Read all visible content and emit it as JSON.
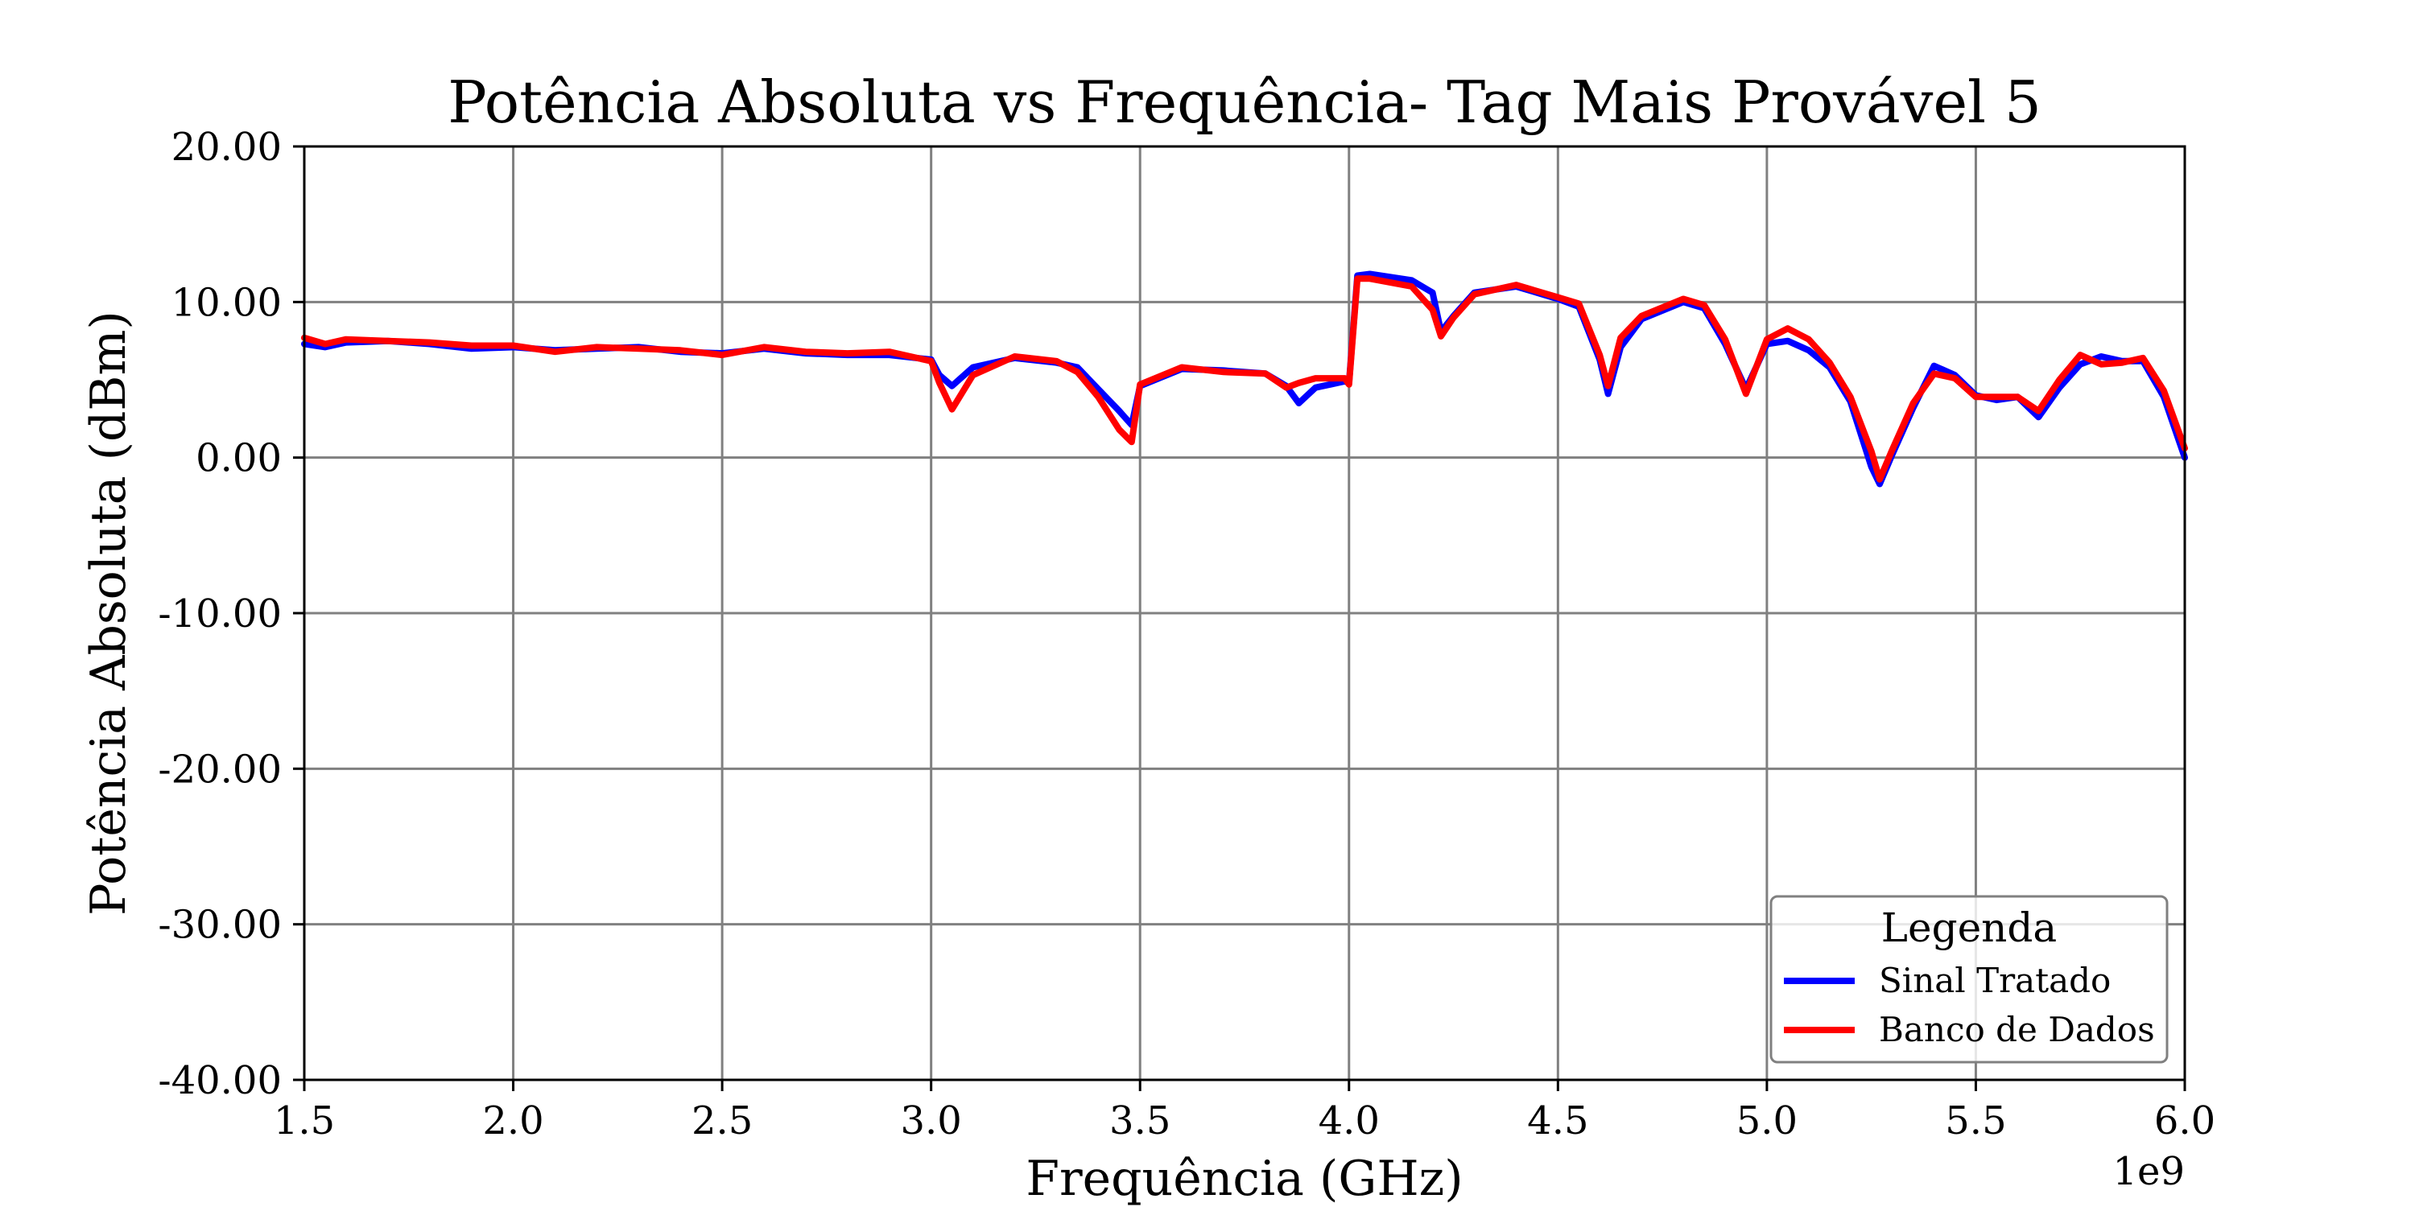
{
  "chart_data": {
    "type": "line",
    "title": "Potência Absoluta vs Frequência- Tag Mais Provável 5",
    "xlabel": "Frequência (GHz)",
    "ylabel": "Potência Absoluta (dBm)",
    "x_offset_label": "1e9",
    "xlim": [
      1.5,
      6.0
    ],
    "ylim": [
      -40,
      20
    ],
    "x_ticks": [
      1.5,
      2.0,
      2.5,
      3.0,
      3.5,
      4.0,
      4.5,
      5.0,
      5.5,
      6.0
    ],
    "x_tick_labels": [
      "1.5",
      "2.0",
      "2.5",
      "3.0",
      "3.5",
      "4.0",
      "4.5",
      "5.0",
      "5.5",
      "6.0"
    ],
    "y_ticks": [
      -40,
      -30,
      -20,
      -10,
      0,
      10,
      20
    ],
    "y_tick_labels": [
      "-40.00",
      "-30.00",
      "-20.00",
      "-10.00",
      "0.00",
      "10.00",
      "20.00"
    ],
    "grid": true,
    "legend": {
      "title": "Legenda",
      "placement": "bottom-right"
    },
    "series": [
      {
        "name": "Sinal Tratado",
        "color": "#0000ff",
        "x": [
          1.5,
          1.55,
          1.6,
          1.7,
          1.8,
          1.9,
          2.0,
          2.1,
          2.2,
          2.3,
          2.4,
          2.5,
          2.6,
          2.7,
          2.8,
          2.9,
          3.0,
          3.02,
          3.05,
          3.1,
          3.2,
          3.3,
          3.35,
          3.4,
          3.45,
          3.48,
          3.5,
          3.6,
          3.7,
          3.8,
          3.85,
          3.88,
          3.92,
          3.99,
          4.0,
          4.02,
          4.05,
          4.15,
          4.2,
          4.22,
          4.25,
          4.3,
          4.4,
          4.5,
          4.55,
          4.6,
          4.62,
          4.65,
          4.7,
          4.8,
          4.85,
          4.9,
          4.95,
          5.0,
          5.05,
          5.1,
          5.15,
          5.2,
          5.25,
          5.27,
          5.3,
          5.35,
          5.4,
          5.45,
          5.5,
          5.55,
          5.6,
          5.65,
          5.7,
          5.75,
          5.8,
          5.85,
          5.9,
          5.95,
          6.0
        ],
        "y": [
          7.3,
          7.1,
          7.4,
          7.5,
          7.3,
          7.0,
          7.1,
          6.9,
          7.0,
          7.1,
          6.8,
          6.7,
          7.0,
          6.7,
          6.6,
          6.6,
          6.3,
          5.3,
          4.6,
          5.8,
          6.4,
          6.1,
          5.8,
          4.4,
          3.0,
          2.1,
          4.6,
          5.7,
          5.6,
          5.4,
          4.6,
          3.5,
          4.5,
          4.9,
          4.8,
          11.7,
          11.8,
          11.4,
          10.6,
          8.1,
          9.1,
          10.6,
          11.0,
          10.2,
          9.7,
          6.3,
          4.1,
          7.1,
          8.9,
          10.0,
          9.6,
          7.3,
          4.4,
          7.3,
          7.5,
          6.9,
          5.8,
          3.6,
          -0.6,
          -1.7,
          0.2,
          3.2,
          5.9,
          5.3,
          4.0,
          3.7,
          3.9,
          2.6,
          4.5,
          6.0,
          6.5,
          6.2,
          6.2,
          3.9,
          0.0
        ]
      },
      {
        "name": "Banco de Dados",
        "color": "#ff0000",
        "x": [
          1.5,
          1.55,
          1.6,
          1.7,
          1.8,
          1.9,
          2.0,
          2.1,
          2.2,
          2.3,
          2.4,
          2.5,
          2.6,
          2.7,
          2.8,
          2.9,
          3.0,
          3.02,
          3.05,
          3.1,
          3.2,
          3.3,
          3.35,
          3.4,
          3.45,
          3.48,
          3.5,
          3.6,
          3.7,
          3.8,
          3.85,
          3.88,
          3.92,
          3.99,
          4.0,
          4.02,
          4.05,
          4.15,
          4.2,
          4.22,
          4.25,
          4.3,
          4.4,
          4.5,
          4.55,
          4.6,
          4.62,
          4.65,
          4.7,
          4.8,
          4.85,
          4.9,
          4.95,
          5.0,
          5.05,
          5.1,
          5.15,
          5.2,
          5.25,
          5.27,
          5.3,
          5.35,
          5.4,
          5.45,
          5.5,
          5.55,
          5.6,
          5.65,
          5.7,
          5.75,
          5.8,
          5.85,
          5.9,
          5.95,
          6.0
        ],
        "y": [
          7.7,
          7.3,
          7.6,
          7.5,
          7.4,
          7.2,
          7.2,
          6.8,
          7.1,
          7.0,
          6.9,
          6.6,
          7.1,
          6.8,
          6.7,
          6.8,
          6.2,
          4.8,
          3.1,
          5.3,
          6.5,
          6.2,
          5.5,
          3.9,
          1.8,
          1.0,
          4.7,
          5.8,
          5.5,
          5.4,
          4.5,
          4.8,
          5.1,
          5.1,
          4.7,
          11.5,
          11.5,
          11.0,
          9.5,
          7.8,
          9.0,
          10.5,
          11.1,
          10.3,
          9.9,
          6.6,
          4.6,
          7.7,
          9.1,
          10.2,
          9.8,
          7.6,
          4.1,
          7.6,
          8.3,
          7.6,
          6.1,
          3.9,
          0.4,
          -1.4,
          0.5,
          3.5,
          5.4,
          5.1,
          3.9,
          3.9,
          3.9,
          3.0,
          5.0,
          6.6,
          6.0,
          6.1,
          6.4,
          4.3,
          0.6
        ]
      }
    ]
  }
}
